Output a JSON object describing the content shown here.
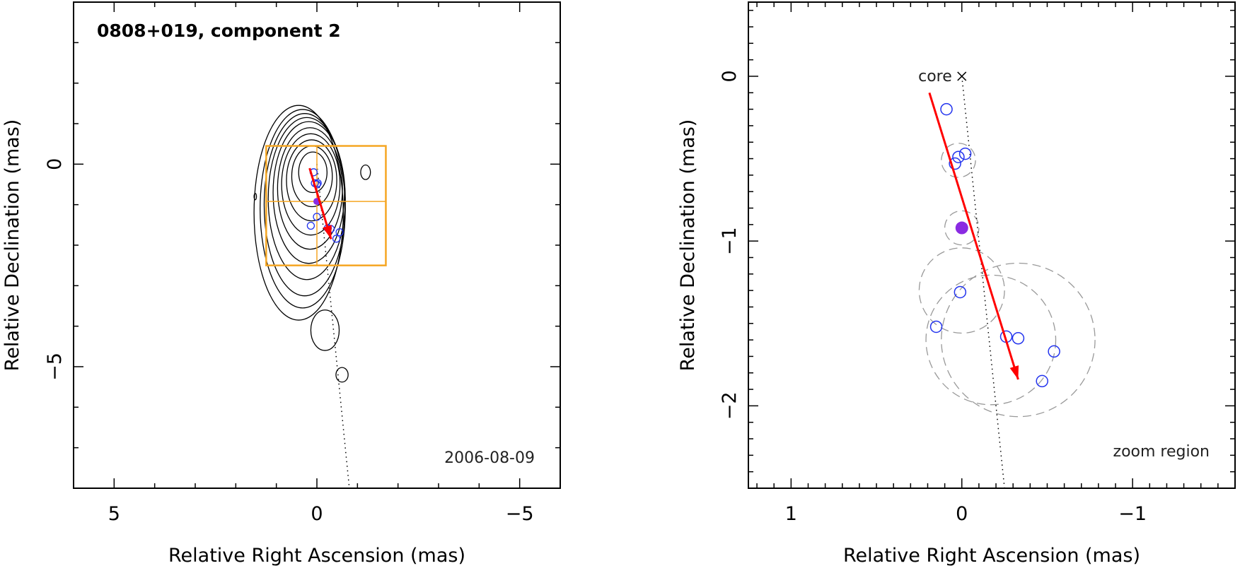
{
  "chart_data": [
    {
      "type": "scatter",
      "panel": "left",
      "title": "0808+019, component 2",
      "xlabel": "Relative Right Ascension (mas)",
      "ylabel": "Relative Declination (mas)",
      "xlim": [
        6,
        -6
      ],
      "ylim": [
        -8,
        4
      ],
      "x_ticks": [
        5,
        0,
        -5
      ],
      "y_ticks": [
        0,
        -5
      ],
      "date": "2006-08-09",
      "contours": [
        {
          "cx": 0.1,
          "cy": -0.2,
          "rx": 0.35,
          "ry": 0.5
        },
        {
          "cx": 0.12,
          "cy": -0.3,
          "rx": 0.5,
          "ry": 0.75
        },
        {
          "cx": 0.13,
          "cy": -0.4,
          "rx": 0.62,
          "ry": 1.0
        },
        {
          "cx": 0.15,
          "cy": -0.5,
          "rx": 0.72,
          "ry": 1.25
        },
        {
          "cx": 0.17,
          "cy": -0.6,
          "rx": 0.8,
          "ry": 1.5
        },
        {
          "cx": 0.2,
          "cy": -0.7,
          "rx": 0.88,
          "ry": 1.75
        },
        {
          "cx": 0.25,
          "cy": -0.85,
          "rx": 0.95,
          "ry": 2.0
        },
        {
          "cx": 0.3,
          "cy": -1.0,
          "rx": 1.0,
          "ry": 2.25
        },
        {
          "cx": 0.35,
          "cy": -1.1,
          "rx": 1.05,
          "ry": 2.45
        },
        {
          "cx": 0.45,
          "cy": -1.2,
          "rx": 1.1,
          "ry": 2.65
        },
        {
          "cx": -1.2,
          "cy": -0.2,
          "rx": 0.12,
          "ry": 0.18
        },
        {
          "cx": -0.2,
          "cy": -4.1,
          "rx": 0.35,
          "ry": 0.5
        },
        {
          "cx": -0.62,
          "cy": -5.2,
          "rx": 0.15,
          "ry": 0.18
        },
        {
          "cx": 1.52,
          "cy": -0.8,
          "rx": 0.03,
          "ry": 0.08
        }
      ],
      "zoom_box": {
        "x": [
          1.25,
          -1.7
        ],
        "y": [
          0.45,
          -2.5
        ]
      },
      "zoom_center": {
        "ra": 0.0,
        "dec": -0.92
      },
      "jet_axis": {
        "from": [
          0,
          0
        ],
        "to": [
          -0.8,
          -8
        ]
      },
      "motion_vector": {
        "from": [
          0.18,
          -0.1
        ],
        "to": [
          -0.35,
          -1.85
        ]
      },
      "components": [
        {
          "ra": 0.08,
          "dec": -0.2
        },
        {
          "ra": 0.05,
          "dec": -0.47
        },
        {
          "ra": 0.0,
          "dec": -0.5
        },
        {
          "ra": -0.02,
          "dec": -0.47
        },
        {
          "ra": 0.0,
          "dec": -1.3
        },
        {
          "ra": 0.15,
          "dec": -1.52
        },
        {
          "ra": -0.27,
          "dec": -1.58
        },
        {
          "ra": -0.34,
          "dec": -1.6
        },
        {
          "ra": -0.56,
          "dec": -1.68
        },
        {
          "ra": -0.48,
          "dec": -1.84
        }
      ],
      "highlight_component": {
        "ra": 0.0,
        "dec": -0.92
      }
    },
    {
      "type": "scatter",
      "panel": "right",
      "xlabel": "Relative Right Ascension (mas)",
      "ylabel": "Relative Declination (mas)",
      "xlim": [
        1.25,
        -1.6
      ],
      "ylim": [
        -2.5,
        0.45
      ],
      "x_ticks": [
        1,
        0,
        -1
      ],
      "y_ticks": [
        0,
        -1,
        -2
      ],
      "annotation": "zoom region",
      "core_label": "core",
      "core": {
        "ra": 0.0,
        "dec": 0.0
      },
      "jet_axis": {
        "from": [
          0,
          0
        ],
        "to": [
          -0.25,
          -2.5
        ]
      },
      "motion_vector": {
        "from": [
          0.19,
          -0.1
        ],
        "to": [
          -0.33,
          -1.84
        ]
      },
      "components": [
        {
          "ra": 0.09,
          "dec": -0.2
        },
        {
          "ra": 0.04,
          "dec": -0.53
        },
        {
          "ra": 0.02,
          "dec": -0.49
        },
        {
          "ra": -0.02,
          "dec": -0.47
        },
        {
          "ra": 0.01,
          "dec": -1.31
        },
        {
          "ra": 0.15,
          "dec": -1.52
        },
        {
          "ra": -0.26,
          "dec": -1.58
        },
        {
          "ra": -0.33,
          "dec": -1.59
        },
        {
          "ra": -0.54,
          "dec": -1.67
        },
        {
          "ra": -0.47,
          "dec": -1.85
        }
      ],
      "highlight_component": {
        "ra": 0.0,
        "dec": -0.92
      },
      "error_circles": [
        {
          "ra": 0.02,
          "dec": -0.51,
          "r": 0.1
        },
        {
          "ra": 0.0,
          "dec": -0.92,
          "r": 0.1
        },
        {
          "ra": 0.0,
          "dec": -1.3,
          "r": 0.25
        },
        {
          "ra": -0.17,
          "dec": -1.6,
          "r": 0.38
        },
        {
          "ra": -0.33,
          "dec": -1.6,
          "r": 0.45
        }
      ]
    }
  ],
  "colors": {
    "contour": "#000000",
    "zoom_box": "#f5a623",
    "motion_vector": "#ff0000",
    "component": "#2233ee",
    "highlight": "#8a2be2",
    "error_circle": "#999999",
    "jet_axis": "#000000"
  }
}
